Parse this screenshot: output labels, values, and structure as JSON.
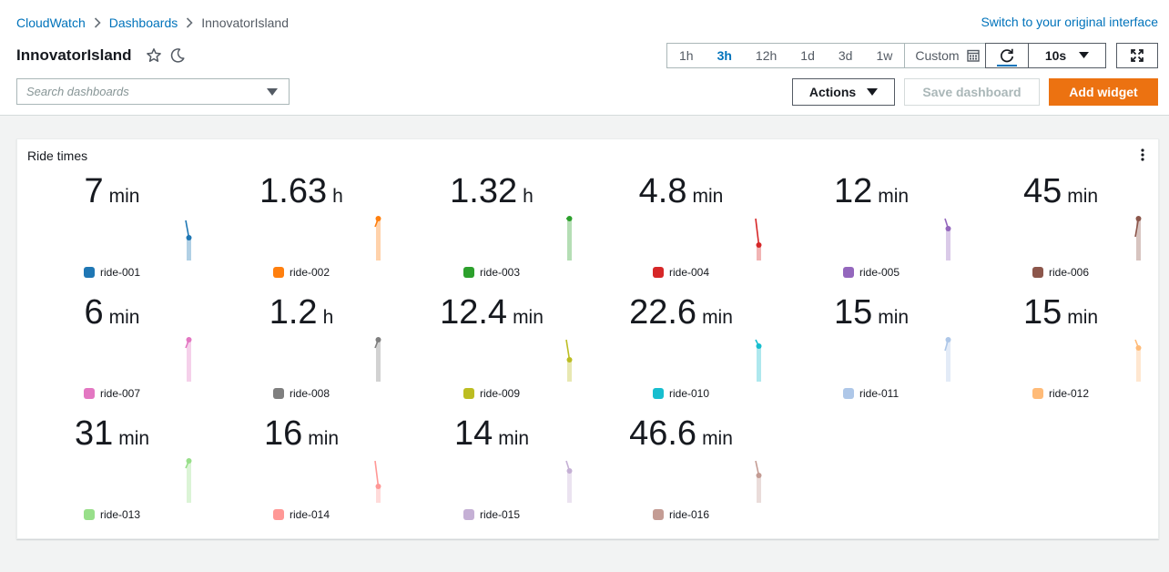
{
  "breadcrumb": {
    "items": [
      "CloudWatch",
      "Dashboards"
    ],
    "current": "InnovatorIsland"
  },
  "switch_link": "Switch to your original interface",
  "page_title": "InnovatorIsland",
  "time_range": {
    "options": [
      "1h",
      "3h",
      "12h",
      "1d",
      "3d",
      "1w"
    ],
    "active": "3h",
    "custom_label": "Custom"
  },
  "refresh": {
    "interval": "10s"
  },
  "search": {
    "placeholder": "Search dashboards",
    "value": ""
  },
  "buttons": {
    "actions": "Actions",
    "save": "Save dashboard",
    "add": "Add widget"
  },
  "widget": {
    "title": "Ride times"
  },
  "icons": {
    "breadcrumb_separator": "chevron-right-icon",
    "favorite": "star-outline-icon",
    "theme": "moon-icon",
    "calendar": "calendar-icon",
    "refresh": "refresh-icon",
    "dropdown": "caret-down-icon",
    "fullscreen": "fullscreen-icon",
    "widget_menu": "vertical-dots-icon"
  },
  "colors": {
    "link": "#0073bb",
    "primary_button": "#ec7211",
    "text": "#16191f",
    "muted": "#545b64"
  },
  "metrics": [
    {
      "label": "ride-001",
      "value": "7",
      "unit": "min",
      "color": "#1f77b4",
      "spark_prev": 0.92,
      "spark_last": 0.54
    },
    {
      "label": "ride-002",
      "value": "1.63",
      "unit": "h",
      "color": "#ff7f0e",
      "spark_prev": 0.78,
      "spark_last": 0.96
    },
    {
      "label": "ride-003",
      "value": "1.32",
      "unit": "h",
      "color": "#2ca02c",
      "spark_prev": 0.96,
      "spark_last": 0.96
    },
    {
      "label": "ride-004",
      "value": "4.8",
      "unit": "min",
      "color": "#d62728",
      "spark_prev": 0.96,
      "spark_last": 0.38
    },
    {
      "label": "ride-005",
      "value": "12",
      "unit": "min",
      "color": "#9467bd",
      "spark_prev": 0.96,
      "spark_last": 0.74
    },
    {
      "label": "ride-006",
      "value": "45",
      "unit": "min",
      "color": "#8c564b",
      "spark_prev": 0.56,
      "spark_last": 0.96
    },
    {
      "label": "ride-007",
      "value": "6",
      "unit": "min",
      "color": "#e377c2",
      "spark_prev": 0.78,
      "spark_last": 0.96
    },
    {
      "label": "ride-008",
      "value": "1.2",
      "unit": "h",
      "color": "#7f7f7f",
      "spark_prev": 0.78,
      "spark_last": 0.96
    },
    {
      "label": "ride-009",
      "value": "12.4",
      "unit": "min",
      "color": "#bcbd22",
      "spark_prev": 0.96,
      "spark_last": 0.52
    },
    {
      "label": "ride-010",
      "value": "22.6",
      "unit": "min",
      "color": "#17becf",
      "spark_prev": 0.96,
      "spark_last": 0.82
    },
    {
      "label": "ride-011",
      "value": "15",
      "unit": "min",
      "color": "#aec7e8",
      "spark_prev": 0.72,
      "spark_last": 0.96
    },
    {
      "label": "ride-012",
      "value": "15",
      "unit": "min",
      "color": "#ffbb78",
      "spark_prev": 0.96,
      "spark_last": 0.78
    },
    {
      "label": "ride-013",
      "value": "31",
      "unit": "min",
      "color": "#98df8a",
      "spark_prev": 0.8,
      "spark_last": 0.96
    },
    {
      "label": "ride-014",
      "value": "16",
      "unit": "min",
      "color": "#ff9896",
      "spark_prev": 0.96,
      "spark_last": 0.4
    },
    {
      "label": "ride-015",
      "value": "14",
      "unit": "min",
      "color": "#c5b0d5",
      "spark_prev": 0.96,
      "spark_last": 0.74
    },
    {
      "label": "ride-016",
      "value": "46.6",
      "unit": "min",
      "color": "#c49c94",
      "spark_prev": 0.96,
      "spark_last": 0.64
    }
  ]
}
